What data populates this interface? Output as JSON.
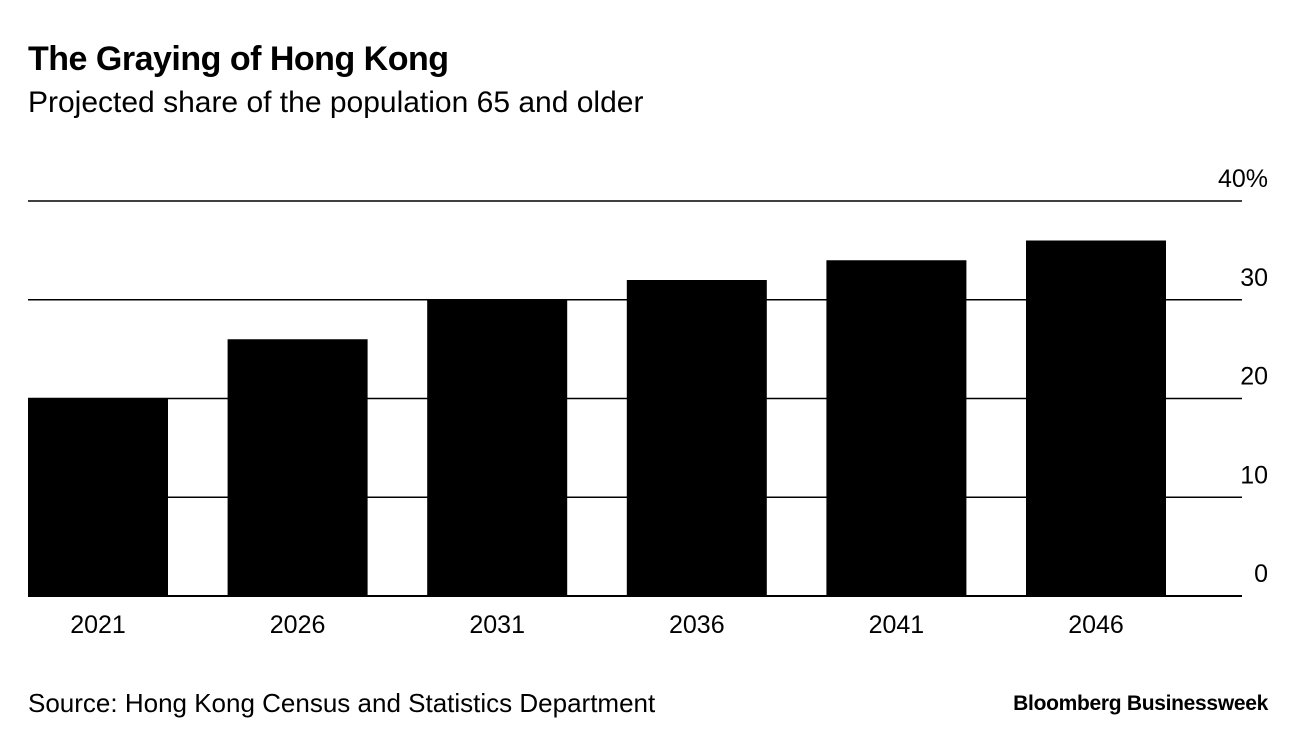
{
  "header": {
    "title": "The Graying of Hong Kong",
    "subtitle": "Projected share of the population 65 and older"
  },
  "footer": {
    "source": "Source: Hong Kong Census and Statistics Department",
    "brand": "Bloomberg Businessweek"
  },
  "chart_data": {
    "type": "bar",
    "title": "The Graying of Hong Kong",
    "subtitle": "Projected share of the population 65 and older",
    "categories": [
      "2021",
      "2026",
      "2031",
      "2036",
      "2041",
      "2046"
    ],
    "values": [
      20.0,
      26.0,
      30.0,
      32.0,
      34.0,
      36.0
    ],
    "ylim": [
      0,
      40
    ],
    "y_ticks": [
      0,
      10,
      20,
      30,
      40
    ],
    "y_tick_labels": [
      "0",
      "10",
      "20",
      "30",
      "40%"
    ],
    "y_axis_side": "right",
    "grid": true,
    "bar_color": "#000000",
    "grid_color": "#000000"
  }
}
